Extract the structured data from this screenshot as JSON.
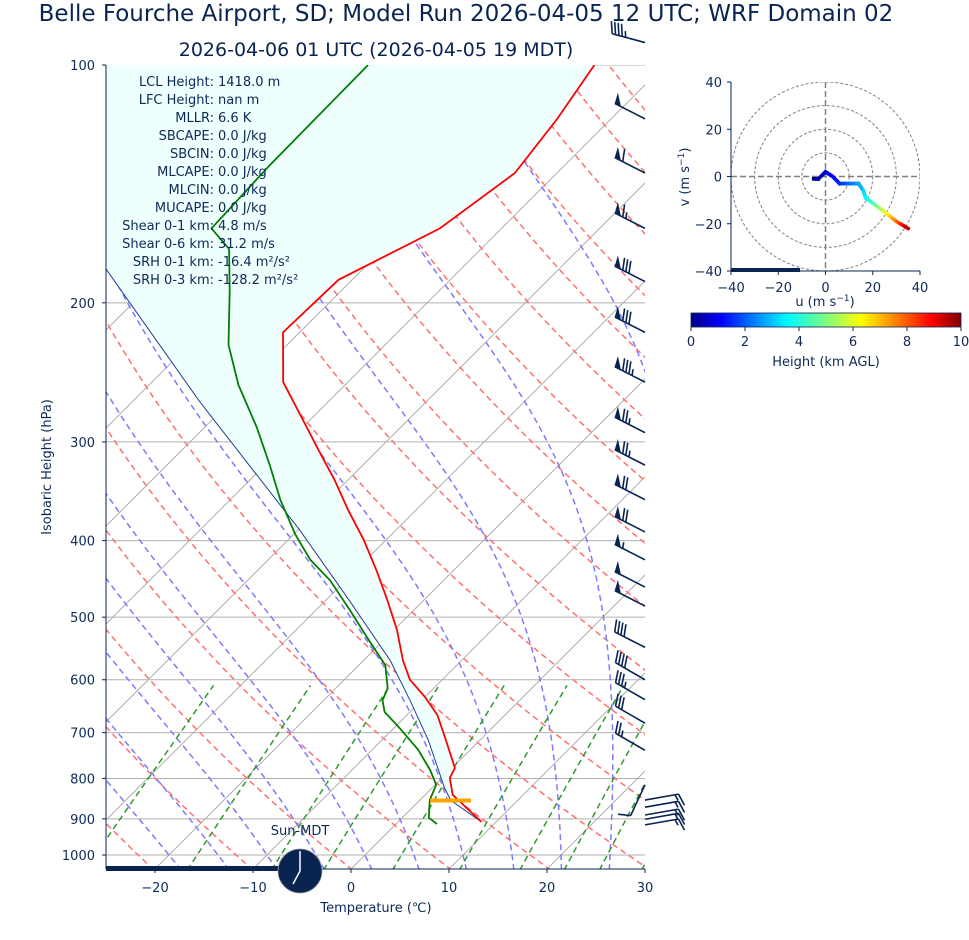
{
  "title": "Belle Fourche Airport, SD; Model Run 2026-04-05 12 UTC; WRF Domain 02",
  "subtitle": "2026-04-06 01 UTC  (2026-04-05 19 MDT)",
  "stats": [
    {
      "label": "LCL Height:",
      "value": "1418.0 m"
    },
    {
      "label": "LFC Height:",
      "value": "nan m"
    },
    {
      "label": "MLLR:",
      "value": "6.6 K"
    },
    {
      "label": "SBCAPE:",
      "value": "0.0 J/kg"
    },
    {
      "label": "SBCIN:",
      "value": "0.0 J/kg"
    },
    {
      "label": "MLCAPE:",
      "value": "0.0 J/kg"
    },
    {
      "label": "MLCIN:",
      "value": "0.0 J/kg"
    },
    {
      "label": "MUCAPE:",
      "value": "0.0 J/kg"
    },
    {
      "label": "Shear 0-1 km:",
      "value": "4.8 m/s"
    },
    {
      "label": "Shear 0-6 km:",
      "value": "31.2 m/s"
    },
    {
      "label": "SRH 0-1 km:",
      "value": "-16.4 m²/s²"
    },
    {
      "label": "SRH 0-3 km:",
      "value": "-128.2 m²/s²"
    }
  ],
  "sun_label": "Sun-MDT",
  "colors": {
    "temperature": "#ff0000",
    "dewpoint": "#008000",
    "parcel": "#1f3f8f",
    "cin_shade": "#eefffe",
    "lcl": "#ffa500",
    "text": "#0d2a55"
  },
  "chart_data": [
    {
      "type": "line",
      "name": "skew-t",
      "xlabel": "Temperature (℃)",
      "ylabel": "Isobaric Height (hPa)",
      "xlim": [
        -25,
        30
      ],
      "ylim": [
        1041,
        100
      ],
      "xticks": [
        "−20",
        "−10",
        "0",
        "10",
        "20",
        "30"
      ],
      "xtick_values": [
        -20,
        -10,
        0,
        10,
        20,
        30
      ],
      "yticks": [
        "100",
        "200",
        "300",
        "400",
        "500",
        "600",
        "700",
        "800",
        "900",
        "1000"
      ],
      "ytick_values": [
        100,
        200,
        300,
        400,
        500,
        600,
        700,
        800,
        900,
        1000
      ],
      "grid": true,
      "series": [
        {
          "name": "temperature",
          "p": [
            908,
            839,
            799,
            776,
            715,
            665,
            631,
            600,
            567,
            519,
            476,
            436,
            399,
            366,
            335,
            307,
            281,
            252,
            218,
            187,
            161,
            137,
            117,
            100
          ],
          "T": [
            8.5,
            2.8,
            0.8,
            0.3,
            -3.5,
            -6.9,
            -10.0,
            -13.3,
            -16.0,
            -19.7,
            -23.7,
            -27.9,
            -32.3,
            -36.9,
            -41.4,
            -46.1,
            -50.8,
            -56.6,
            -61.7,
            -61.4,
            -56.3,
            -54.3,
            -55.5,
            -57.2
          ]
        },
        {
          "name": "dewpoint",
          "p": [
            914,
            897,
            852,
            815,
            781,
            736,
            691,
            659,
            637,
            615,
            575,
            534,
            490,
            449,
            423,
            393,
            355,
            321,
            288,
            254,
            226,
            193,
            171,
            161,
            134,
            100
          ],
          "T": [
            4.2,
            2.7,
            1.0,
            0.1,
            -2.0,
            -5.3,
            -9.4,
            -12.6,
            -14.0,
            -14.7,
            -17.3,
            -21.6,
            -26.5,
            -31.6,
            -35.7,
            -39.8,
            -44.9,
            -49.5,
            -54.6,
            -60.9,
            -66.0,
            -71.4,
            -75.7,
            -79.6,
            -80.1,
            -80.3
          ]
        },
        {
          "name": "parcel",
          "p": [
            908,
            853,
            823,
            715,
            637,
            567,
            476,
            388,
            266,
            181,
            100
          ],
          "T": [
            8.5,
            3.2,
            1.3,
            -5.3,
            -11.2,
            -17.3,
            -27.6,
            -39.8,
            -63.3,
            -86.3,
            -135
          ]
        }
      ],
      "lcl_pressure": 853,
      "wind_barbs": [
        {
          "p": 97,
          "speed_kt": 45,
          "dir": 285
        },
        {
          "p": 117,
          "speed_kt": 50,
          "dir": 297
        },
        {
          "p": 137,
          "speed_kt": 60,
          "dir": 297
        },
        {
          "p": 161,
          "speed_kt": 65,
          "dir": 297
        },
        {
          "p": 188,
          "speed_kt": 80,
          "dir": 297
        },
        {
          "p": 218,
          "speed_kt": 80,
          "dir": 297
        },
        {
          "p": 252,
          "speed_kt": 85,
          "dir": 297
        },
        {
          "p": 292,
          "speed_kt": 75,
          "dir": 297
        },
        {
          "p": 321,
          "speed_kt": 75,
          "dir": 297
        },
        {
          "p": 355,
          "speed_kt": 70,
          "dir": 297
        },
        {
          "p": 390,
          "speed_kt": 70,
          "dir": 297
        },
        {
          "p": 423,
          "speed_kt": 55,
          "dir": 297
        },
        {
          "p": 458,
          "speed_kt": 50,
          "dir": 297
        },
        {
          "p": 484,
          "speed_kt": 50,
          "dir": 297
        },
        {
          "p": 546,
          "speed_kt": 40,
          "dir": 297
        },
        {
          "p": 600,
          "speed_kt": 40,
          "dir": 300
        },
        {
          "p": 636,
          "speed_kt": 35,
          "dir": 300
        },
        {
          "p": 681,
          "speed_kt": 30,
          "dir": 300
        },
        {
          "p": 737,
          "speed_kt": 25,
          "dir": 300
        },
        {
          "p": 815,
          "speed_kt": 10,
          "dir": 205
        },
        {
          "p": 852,
          "speed_kt": 15,
          "dir": 80
        },
        {
          "p": 870,
          "speed_kt": 15,
          "dir": 80
        },
        {
          "p": 890,
          "speed_kt": 15,
          "dir": 80
        },
        {
          "p": 901,
          "speed_kt": 15,
          "dir": 80
        },
        {
          "p": 916,
          "speed_kt": 15,
          "dir": 80
        }
      ]
    },
    {
      "type": "line",
      "name": "hodograph",
      "xlabel": "u (m s",
      "ylabel": "v (m s",
      "unit_exp": "−1",
      "xlim": [
        -40,
        40
      ],
      "ylim": [
        -40,
        40
      ],
      "xticks": [
        "−40",
        "−20",
        "0",
        "20",
        "40"
      ],
      "yticks": [
        "−40",
        "−20",
        "0",
        "20",
        "40"
      ],
      "tick_values": [
        -40,
        -20,
        0,
        20,
        40
      ],
      "rings": [
        10,
        20,
        30,
        40
      ],
      "u": [
        -5,
        -3,
        0,
        3,
        6,
        10,
        14,
        16,
        17,
        21,
        25,
        30,
        35
      ],
      "v": [
        -1,
        -1,
        2,
        0,
        -3,
        -3,
        -3,
        -6,
        -9,
        -12,
        -15,
        -19,
        -22
      ],
      "height_km": [
        0,
        0.3,
        0.8,
        1.2,
        1.6,
        2.2,
        2.8,
        3.2,
        3.6,
        4.6,
        5.8,
        7.5,
        9.5
      ]
    },
    {
      "type": "colorbar",
      "name": "height-colorbar",
      "label": "Height (km AGL)",
      "range": [
        0,
        10
      ],
      "ticks": [
        "0",
        "2",
        "4",
        "6",
        "8",
        "10"
      ],
      "tick_values": [
        0,
        2,
        4,
        6,
        8,
        10
      ],
      "colormap": "jet"
    }
  ]
}
